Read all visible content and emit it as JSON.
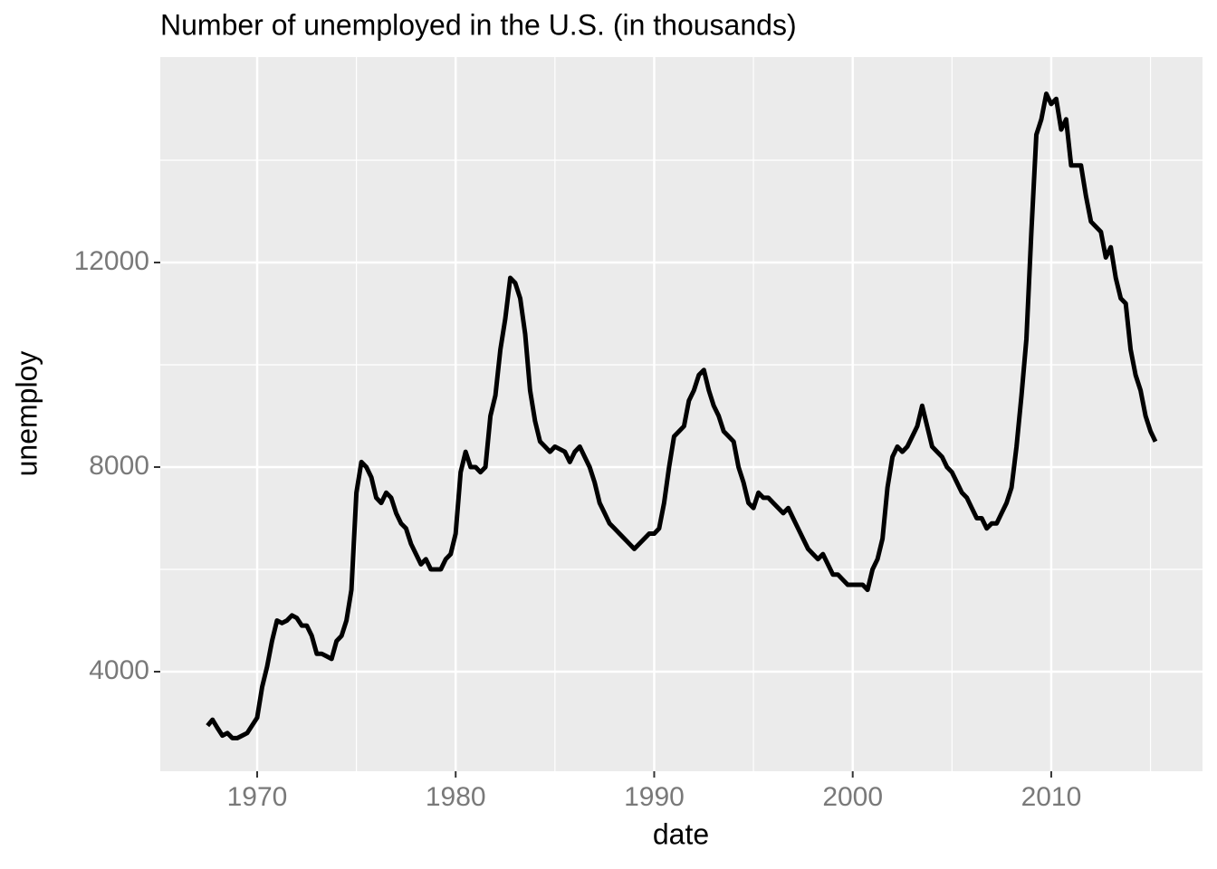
{
  "chart_data": {
    "type": "line",
    "title": "Number of unemployed in the U.S. (in thousands)",
    "x_label": "date",
    "y_label": "unemploy",
    "xlim": [
      1965.12,
      2017.62
    ],
    "ylim": [
      2053,
      16018
    ],
    "xticks": [
      1970,
      1980,
      1990,
      2000,
      2010
    ],
    "yticks": [
      4000,
      8000,
      12000
    ],
    "xminor": [
      1965,
      1975,
      1985,
      1995,
      2005,
      2015
    ],
    "yminor": [
      2000,
      6000,
      10000,
      14000
    ],
    "grid": true,
    "series": [
      {
        "color": "#000000",
        "x": [
          1967.5,
          1967.75,
          1968,
          1968.25,
          1968.5,
          1968.75,
          1969,
          1969.25,
          1969.5,
          1969.75,
          1970,
          1970.25,
          1970.5,
          1970.75,
          1971,
          1971.25,
          1971.5,
          1971.75,
          1972,
          1972.25,
          1972.5,
          1972.75,
          1973,
          1973.25,
          1973.5,
          1973.75,
          1974,
          1974.25,
          1974.5,
          1974.75,
          1975,
          1975.25,
          1975.5,
          1975.75,
          1976,
          1976.25,
          1976.5,
          1976.75,
          1977,
          1977.25,
          1977.5,
          1977.75,
          1978,
          1978.25,
          1978.5,
          1978.75,
          1979,
          1979.25,
          1979.5,
          1979.75,
          1980,
          1980.25,
          1980.5,
          1980.75,
          1981,
          1981.25,
          1981.5,
          1981.75,
          1982,
          1982.25,
          1982.5,
          1982.75,
          1983,
          1983.25,
          1983.5,
          1983.75,
          1984,
          1984.25,
          1984.5,
          1984.75,
          1985,
          1985.25,
          1985.5,
          1985.75,
          1986,
          1986.25,
          1986.5,
          1986.75,
          1987,
          1987.25,
          1987.5,
          1987.75,
          1988,
          1988.25,
          1988.5,
          1988.75,
          1989,
          1989.25,
          1989.5,
          1989.75,
          1990,
          1990.25,
          1990.5,
          1990.75,
          1991,
          1991.25,
          1991.5,
          1991.75,
          1992,
          1992.25,
          1992.5,
          1992.75,
          1993,
          1993.25,
          1993.5,
          1993.75,
          1994,
          1994.25,
          1994.5,
          1994.75,
          1995,
          1995.25,
          1995.5,
          1995.75,
          1996,
          1996.25,
          1996.5,
          1996.75,
          1997,
          1997.25,
          1997.5,
          1997.75,
          1998,
          1998.25,
          1998.5,
          1998.75,
          1999,
          1999.25,
          1999.5,
          1999.75,
          2000,
          2000.25,
          2000.5,
          2000.75,
          2001,
          2001.25,
          2001.5,
          2001.75,
          2002,
          2002.25,
          2002.5,
          2002.75,
          2003,
          2003.25,
          2003.5,
          2003.75,
          2004,
          2004.25,
          2004.5,
          2004.75,
          2005,
          2005.25,
          2005.5,
          2005.75,
          2006,
          2006.25,
          2006.5,
          2006.75,
          2007,
          2007.25,
          2007.5,
          2007.75,
          2008,
          2008.25,
          2008.5,
          2008.75,
          2009,
          2009.25,
          2009.5,
          2009.75,
          2010,
          2010.25,
          2010.5,
          2010.75,
          2011,
          2011.25,
          2011.5,
          2011.75,
          2012,
          2012.25,
          2012.5,
          2012.75,
          2013,
          2013.25,
          2013.5,
          2013.75,
          2014,
          2014.25,
          2014.5,
          2014.75,
          2015,
          2015.25
        ],
        "values": [
          2944,
          3060,
          2900,
          2750,
          2800,
          2700,
          2700,
          2750,
          2800,
          2950,
          3100,
          3700,
          4100,
          4600,
          5000,
          4950,
          5000,
          5100,
          5050,
          4900,
          4900,
          4700,
          4350,
          4350,
          4300,
          4250,
          4600,
          4700,
          5000,
          5600,
          7500,
          8100,
          8000,
          7800,
          7400,
          7300,
          7500,
          7400,
          7100,
          6900,
          6800,
          6500,
          6300,
          6100,
          6200,
          6000,
          6000,
          6000,
          6200,
          6300,
          6700,
          7900,
          8300,
          8000,
          8000,
          7900,
          8000,
          9000,
          9400,
          10300,
          10900,
          11700,
          11600,
          11300,
          10600,
          9500,
          8900,
          8500,
          8400,
          8300,
          8400,
          8350,
          8300,
          8100,
          8300,
          8400,
          8200,
          8000,
          7700,
          7300,
          7100,
          6900,
          6800,
          6700,
          6600,
          6500,
          6400,
          6500,
          6600,
          6700,
          6700,
          6800,
          7300,
          8000,
          8600,
          8700,
          8800,
          9300,
          9500,
          9800,
          9900,
          9500,
          9200,
          9000,
          8700,
          8600,
          8500,
          8000,
          7700,
          7300,
          7200,
          7500,
          7400,
          7400,
          7300,
          7200,
          7100,
          7200,
          7000,
          6800,
          6600,
          6400,
          6300,
          6200,
          6300,
          6100,
          5900,
          5900,
          5800,
          5700,
          5700,
          5700,
          5700,
          5600,
          6000,
          6200,
          6600,
          7600,
          8200,
          8400,
          8300,
          8400,
          8600,
          8800,
          9200,
          8800,
          8400,
          8300,
          8200,
          8000,
          7900,
          7700,
          7500,
          7400,
          7200,
          7000,
          7000,
          6800,
          6900,
          6900,
          7100,
          7300,
          7600,
          8400,
          9400,
          10500,
          12600,
          14500,
          14800,
          15300,
          15100,
          15200,
          14600,
          14800,
          13900,
          13900,
          13900,
          13300,
          12800,
          12700,
          12600,
          12100,
          12300,
          11700,
          11300,
          11200,
          10300,
          9800,
          9500,
          9000,
          8700,
          8500
        ]
      }
    ]
  }
}
